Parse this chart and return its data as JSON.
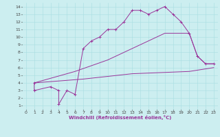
{
  "xlabel": "Windchill (Refroidissement éolien,°C)",
  "background_color": "#cceef0",
  "line_color": "#993399",
  "xlim": [
    -0.5,
    23.5
  ],
  "ylim": [
    0.5,
    14.5
  ],
  "xticks": [
    0,
    1,
    2,
    3,
    4,
    5,
    6,
    7,
    8,
    9,
    10,
    11,
    12,
    13,
    14,
    15,
    16,
    17,
    18,
    19,
    20,
    21,
    22,
    23
  ],
  "yticks": [
    1,
    2,
    3,
    4,
    5,
    6,
    7,
    8,
    9,
    10,
    11,
    12,
    13,
    14
  ],
  "line1_x": [
    1,
    1,
    3,
    4,
    4,
    5,
    6,
    7,
    8,
    9,
    10,
    11,
    12,
    13,
    14,
    15,
    16,
    17,
    18,
    19,
    20,
    21,
    22,
    23
  ],
  "line1_y": [
    4,
    3,
    3.5,
    3,
    1.2,
    3,
    2.5,
    8.5,
    9.5,
    10,
    11,
    11,
    12,
    13.5,
    13.5,
    13,
    13.5,
    14,
    13,
    12,
    10.5,
    7.5,
    6.5,
    6.5
  ],
  "line2_x": [
    1,
    6,
    10,
    13,
    17,
    20,
    21,
    22,
    23
  ],
  "line2_y": [
    4,
    5.5,
    7,
    8.5,
    10.5,
    10.5,
    7.5,
    6.5,
    6.5
  ],
  "line3_x": [
    1,
    7,
    13,
    20,
    23
  ],
  "line3_y": [
    4,
    4.5,
    5.2,
    5.5,
    6.0
  ]
}
